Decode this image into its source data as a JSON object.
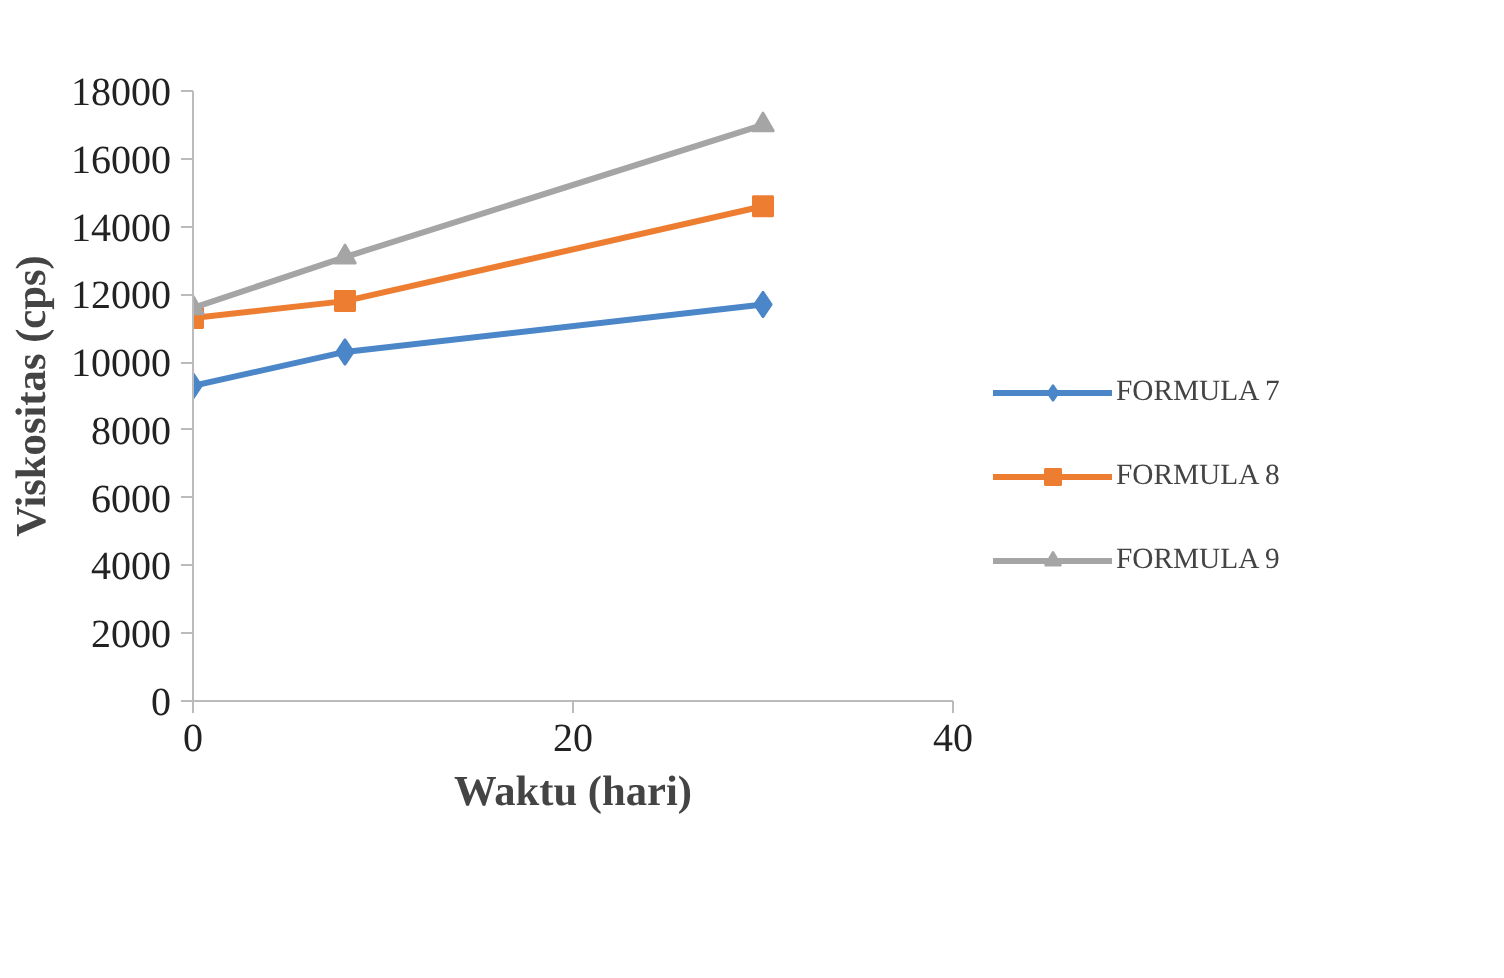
{
  "chart_data": {
    "type": "line",
    "xlabel": "Waktu (hari)",
    "ylabel": "Viskositas (cps)",
    "x": [
      0,
      8,
      30
    ],
    "series": [
      {
        "name": "FORMULA 7",
        "color": "#4a86c8",
        "marker": "diamond",
        "values": [
          9300,
          10300,
          11700
        ]
      },
      {
        "name": "FORMULA 8",
        "color": "#ed7d31",
        "marker": "square",
        "values": [
          11300,
          11800,
          14600
        ]
      },
      {
        "name": "FORMULA 9",
        "color": "#a5a5a5",
        "marker": "triangle",
        "values": [
          11600,
          13100,
          17000
        ]
      }
    ],
    "xlim": [
      0,
      40
    ],
    "xticks": [
      0,
      20,
      40
    ],
    "ylim": [
      0,
      18000
    ],
    "yticks": [
      0,
      2000,
      4000,
      6000,
      8000,
      10000,
      12000,
      14000,
      16000,
      18000
    ],
    "grid": false,
    "legend": "right",
    "line_style": "solid"
  }
}
